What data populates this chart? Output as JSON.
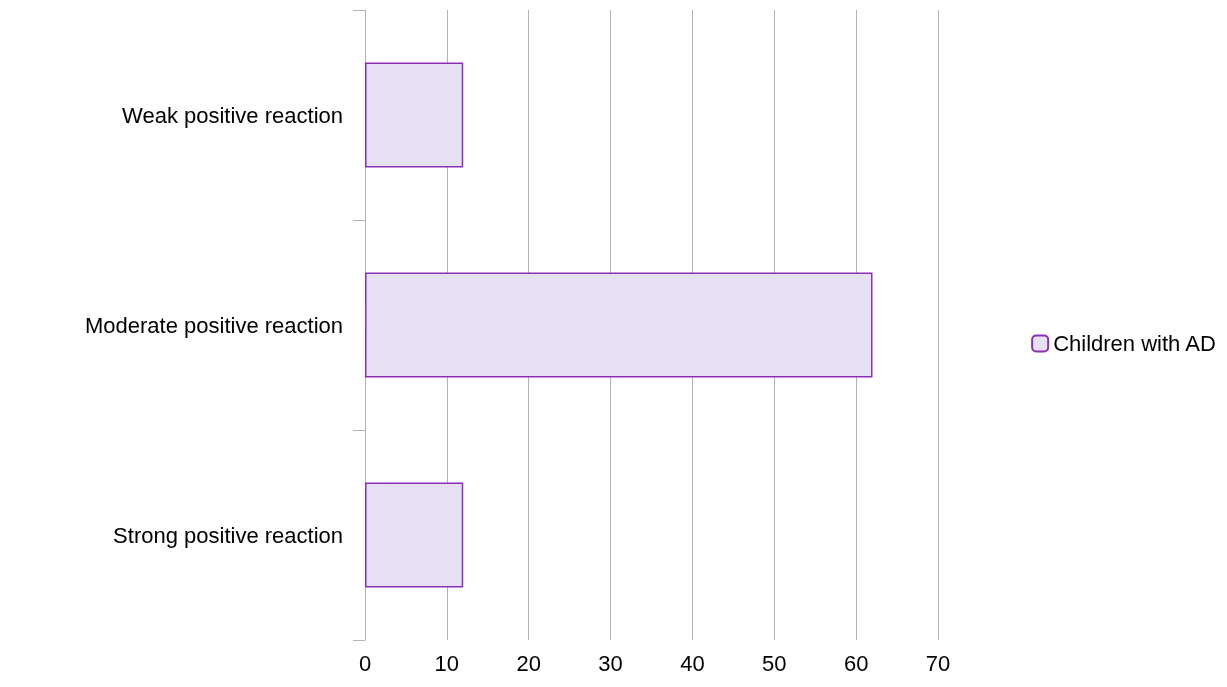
{
  "chart_data": {
    "type": "bar",
    "orientation": "horizontal",
    "categories": [
      "Weak positive reaction",
      "Moderate positive reaction",
      "Strong positive reaction"
    ],
    "series": [
      {
        "name": "Children with AD",
        "color": "#e6e0f3",
        "values": [
          12,
          62,
          12
        ]
      }
    ],
    "xlim": [
      0,
      70
    ],
    "xticks": [
      0,
      10,
      20,
      30,
      40,
      50,
      60,
      70
    ],
    "grid": "x",
    "legend": "right"
  }
}
